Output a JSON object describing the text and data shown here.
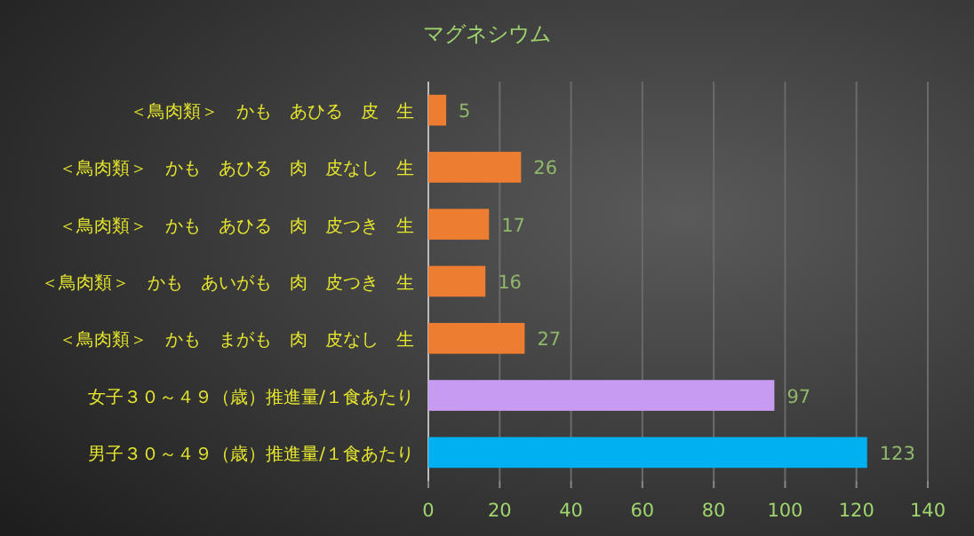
{
  "chart_data": {
    "type": "bar",
    "orientation": "horizontal",
    "title": "マグネシウム",
    "categories": [
      "＜鳥肉類＞　かも　あひる　皮　生",
      "＜鳥肉類＞　かも　あひる　肉　皮なし　生",
      "＜鳥肉類＞　かも　あひる　肉　皮つき　生",
      "＜鳥肉類＞　かも　あいがも　肉　皮つき　生",
      "＜鳥肉類＞　かも　まがも　肉　皮なし　生",
      "女子３０～４９（歳）推進量/１食あたり",
      "男子３０～４９（歳）推進量/１食あたり"
    ],
    "values": [
      5,
      26,
      17,
      16,
      27,
      97,
      123
    ],
    "colors": [
      "#ed7d31",
      "#ed7d31",
      "#ed7d31",
      "#ed7d31",
      "#ed7d31",
      "#c79bf2",
      "#00b0f0"
    ],
    "xlim": [
      0,
      140
    ],
    "xticks": [
      0,
      20,
      40,
      60,
      80,
      100,
      120,
      140
    ],
    "grid": "x",
    "data_labels": true
  }
}
